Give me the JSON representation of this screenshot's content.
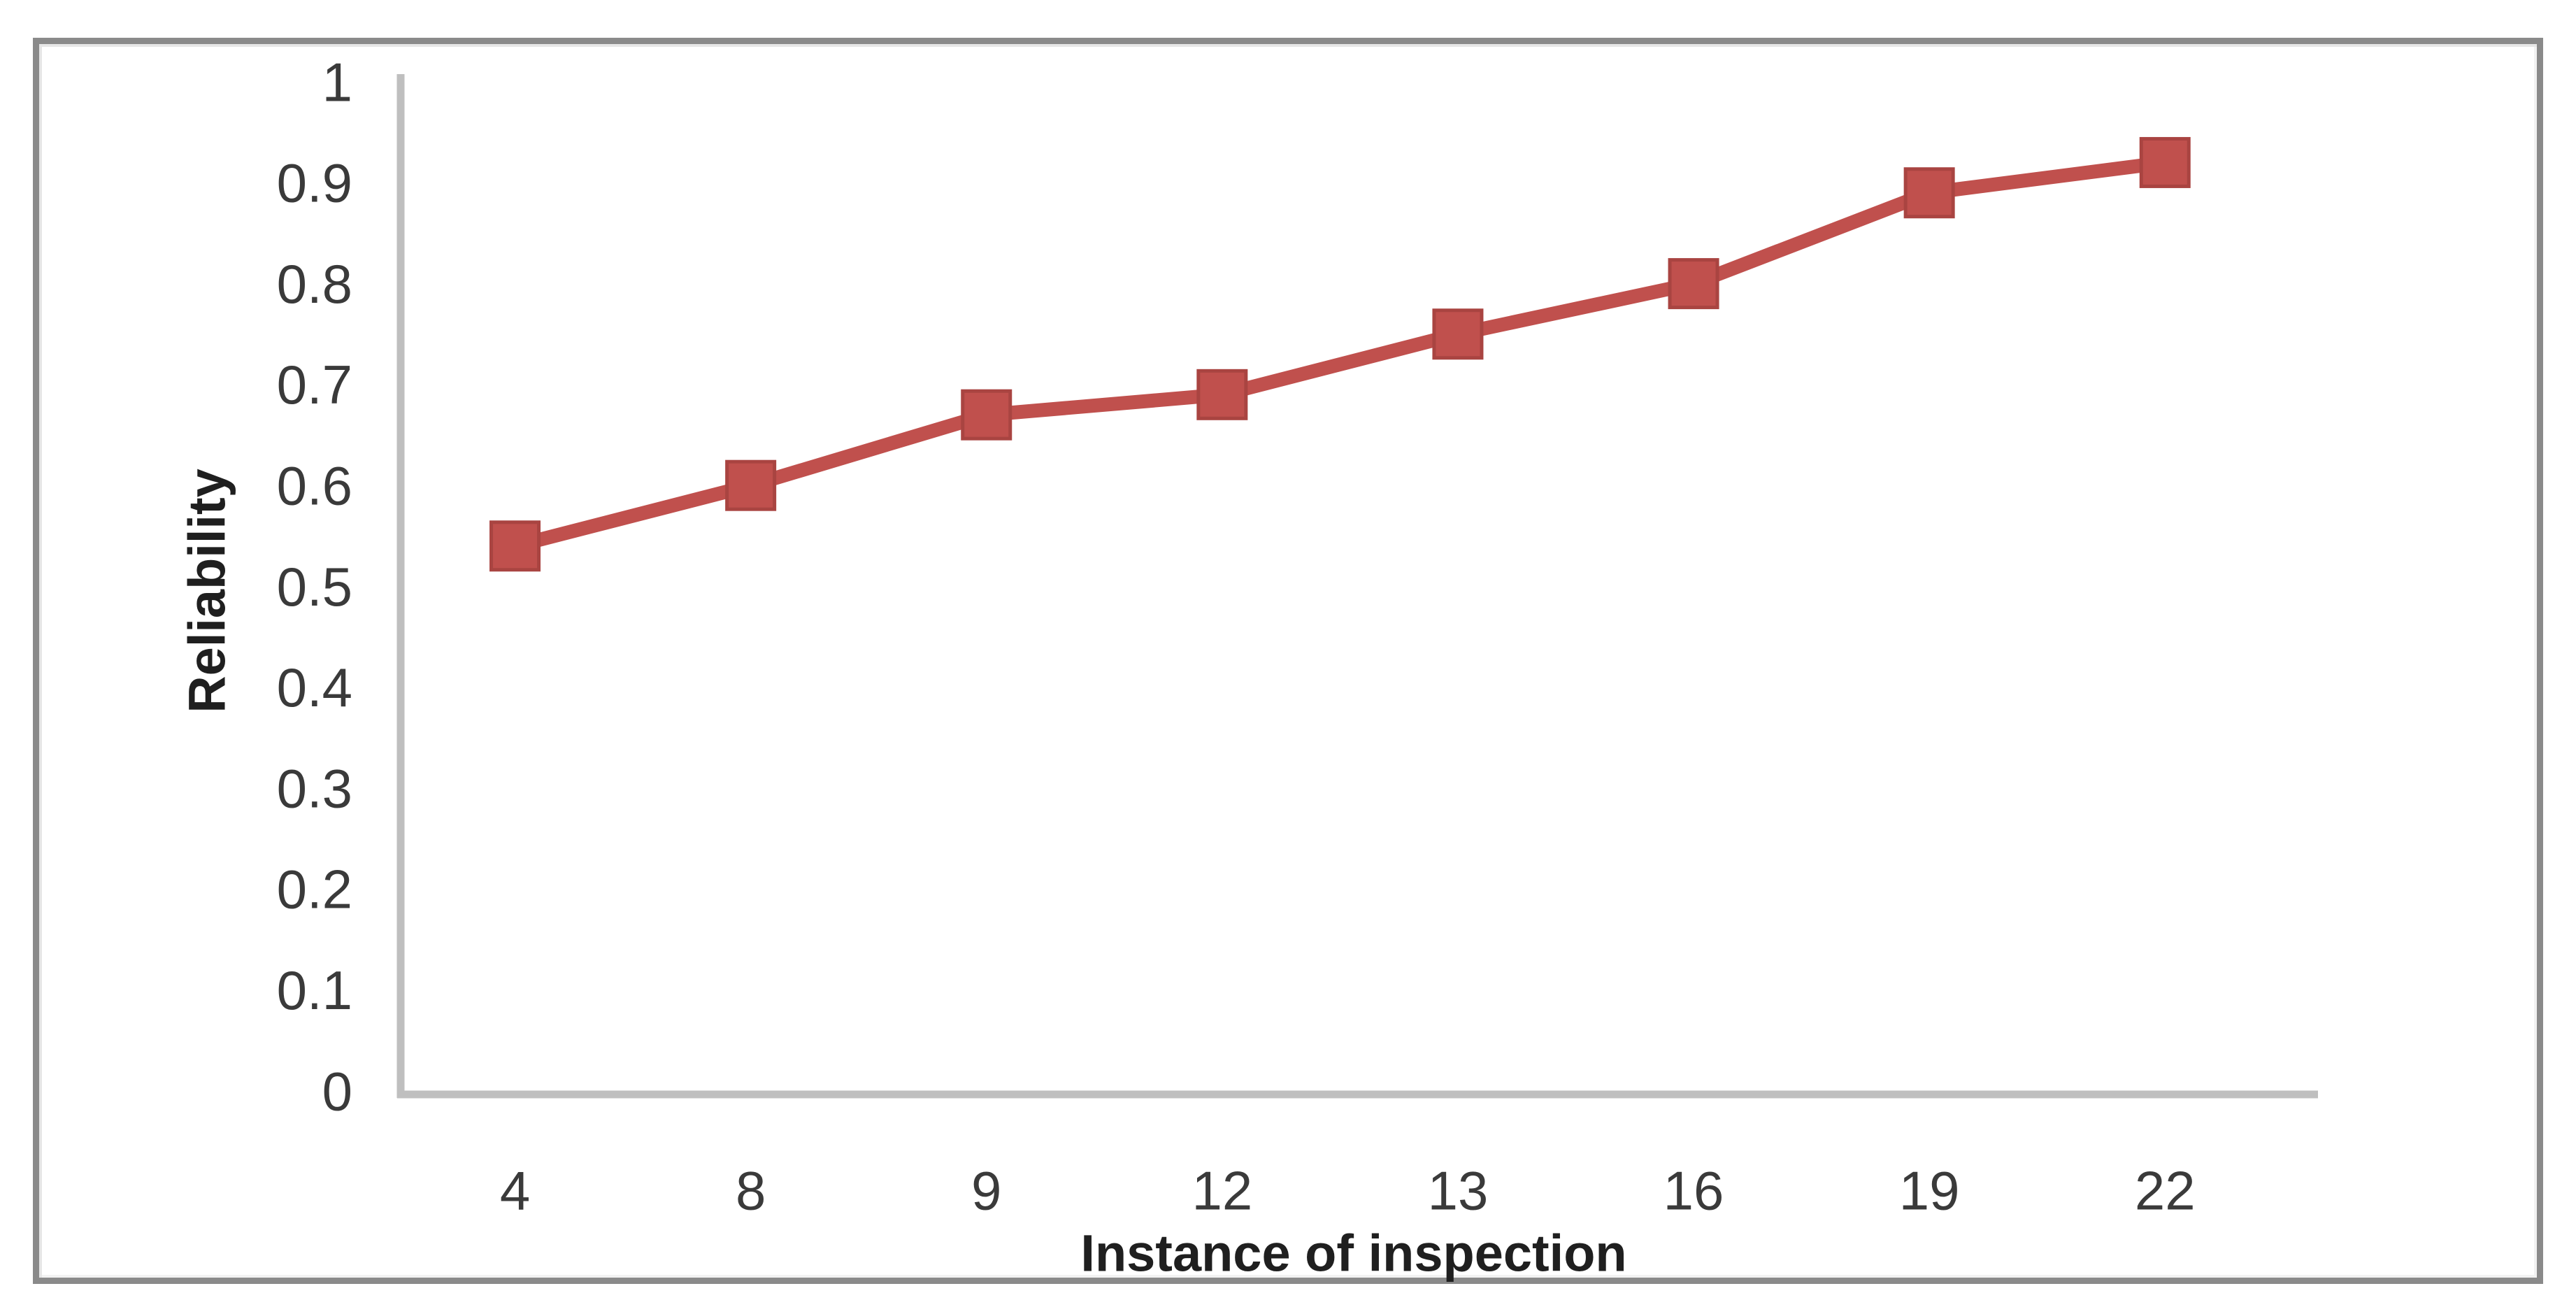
{
  "figure": {
    "border_color": "#8A8A8A",
    "background_color": "#FFFFFF"
  },
  "chart_data": {
    "type": "line",
    "title": "",
    "xlabel": "Instance of inspection",
    "ylabel": "Reliability",
    "categories": [
      "4",
      "8",
      "9",
      "12",
      "13",
      "16",
      "19",
      "22"
    ],
    "values": [
      0.54,
      0.6,
      0.67,
      0.69,
      0.75,
      0.8,
      0.89,
      0.92
    ],
    "y_ticks": [
      "0",
      "0.1",
      "0.2",
      "0.3",
      "0.4",
      "0.5",
      "0.6",
      "0.7",
      "0.8",
      "0.9",
      "1"
    ],
    "ylim": [
      0,
      1
    ],
    "grid": false,
    "legend": false,
    "marker": "square",
    "line_color": "#C0504D",
    "marker_edge_color": "#A94441",
    "axis_color": "#BFBFBF",
    "tick_text_color": "#3A3A3A"
  }
}
